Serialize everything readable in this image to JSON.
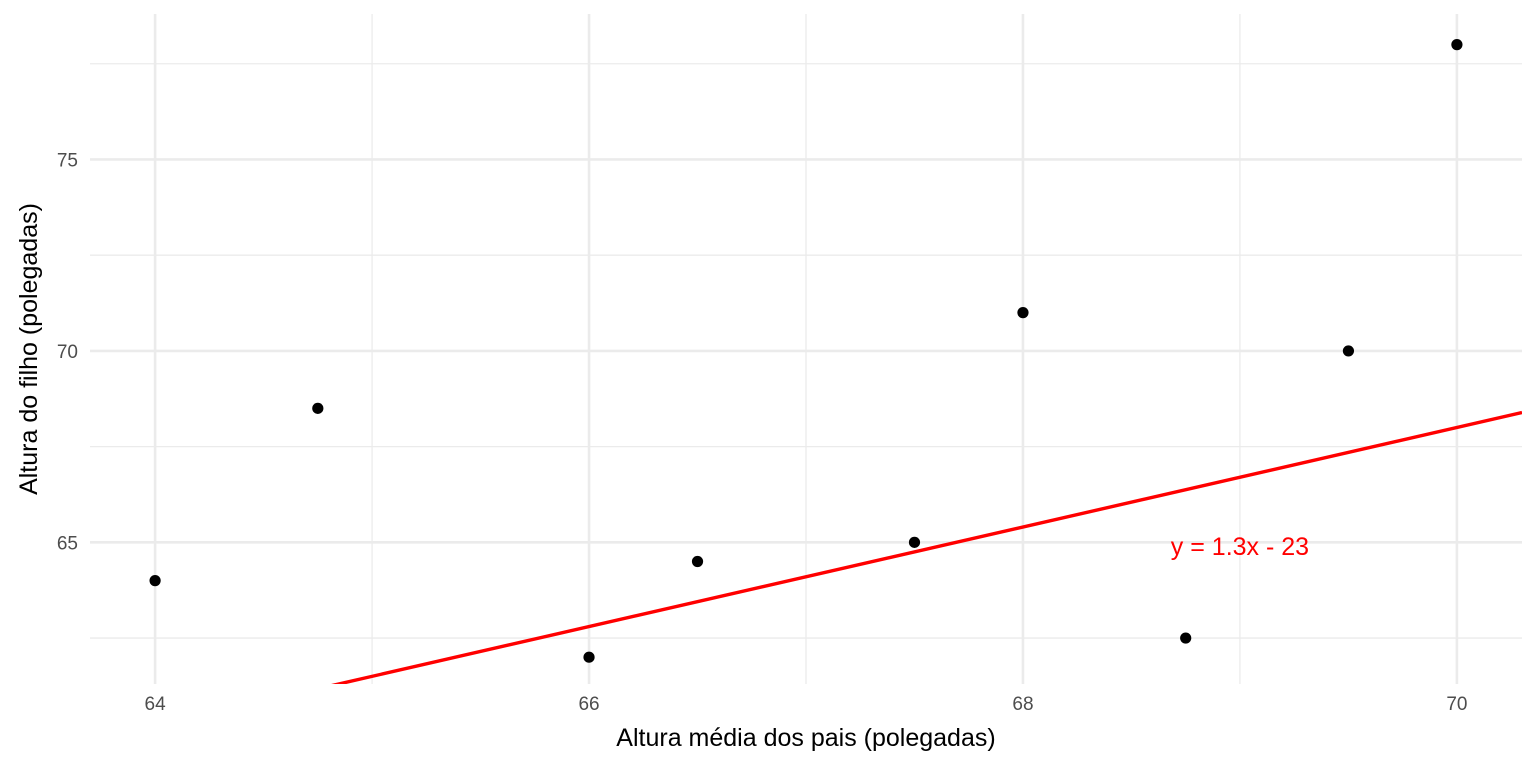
{
  "chart_data": {
    "type": "scatter",
    "xlabel": "Altura média dos pais (polegadas)",
    "ylabel": "Altura do filho (polegadas)",
    "xlim": [
      63.7,
      70.3
    ],
    "ylim": [
      61.3,
      78.8
    ],
    "x_ticks": [
      64,
      66,
      68,
      70
    ],
    "x_tick_labels": [
      "64",
      "66",
      "68",
      "70"
    ],
    "x_minor_ticks": [
      65,
      67,
      69
    ],
    "y_ticks": [
      65,
      70,
      75
    ],
    "y_tick_labels": [
      "65",
      "70",
      "75"
    ],
    "y_minor_ticks": [
      62.5,
      67.5,
      72.5,
      77.5
    ],
    "grid": true,
    "points": [
      {
        "x": 64.0,
        "y": 64.0
      },
      {
        "x": 64.75,
        "y": 68.5
      },
      {
        "x": 66.0,
        "y": 62.0
      },
      {
        "x": 66.5,
        "y": 64.5
      },
      {
        "x": 67.5,
        "y": 65.0
      },
      {
        "x": 68.0,
        "y": 71.0
      },
      {
        "x": 68.75,
        "y": 62.5
      },
      {
        "x": 69.5,
        "y": 70.0
      },
      {
        "x": 70.0,
        "y": 78.0
      }
    ],
    "regression": {
      "slope": 1.3,
      "intercept": -23,
      "label": "y = 1.3x - 23",
      "label_x": 69.0,
      "label_y": 64.9
    },
    "colors": {
      "points": "#000000",
      "line": "#ff0000",
      "grid": "#ebebeb",
      "annotation": "#ff0000"
    }
  }
}
